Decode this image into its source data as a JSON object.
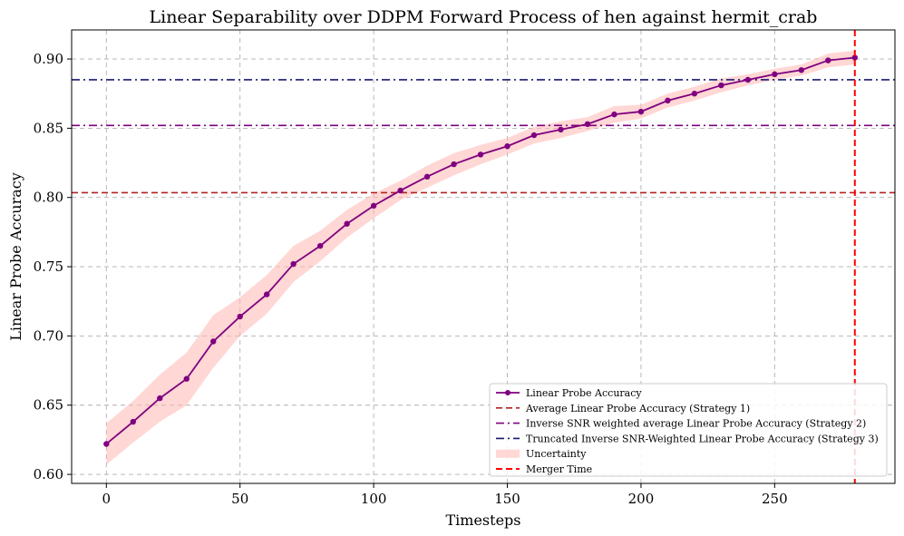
{
  "chart_data": {
    "type": "line",
    "title": "Linear Separability over DDPM Forward Process of hen against hermit_crab",
    "xlabel": "Timesteps",
    "ylabel": "Linear Probe Accuracy",
    "xlim": [
      -13,
      295
    ],
    "ylim": [
      0.5935,
      0.921
    ],
    "xticks": [
      0,
      50,
      100,
      150,
      200,
      250
    ],
    "yticks": [
      0.6,
      0.65,
      0.7,
      0.75,
      0.8,
      0.85,
      0.9
    ],
    "grid": true,
    "legend_position": "lower-right",
    "series": [
      {
        "name": "Linear Probe Accuracy",
        "color": "#800080",
        "x": [
          0,
          10,
          20,
          30,
          40,
          50,
          60,
          70,
          80,
          90,
          100,
          110,
          120,
          130,
          140,
          150,
          160,
          170,
          180,
          190,
          200,
          210,
          220,
          230,
          240,
          250,
          260,
          270,
          280
        ],
        "values": [
          0.622,
          0.638,
          0.655,
          0.669,
          0.696,
          0.714,
          0.73,
          0.752,
          0.765,
          0.781,
          0.794,
          0.805,
          0.815,
          0.824,
          0.831,
          0.837,
          0.845,
          0.849,
          0.853,
          0.86,
          0.862,
          0.87,
          0.875,
          0.881,
          0.885,
          0.889,
          0.892,
          0.899,
          0.901
        ]
      }
    ],
    "uncertainty": {
      "name": "Uncertainty",
      "color": "#ffb6b0",
      "half_width": [
        0.015,
        0.015,
        0.017,
        0.019,
        0.019,
        0.014,
        0.014,
        0.013,
        0.011,
        0.01,
        0.009,
        0.007,
        0.008,
        0.008,
        0.007,
        0.006,
        0.006,
        0.006,
        0.005,
        0.006,
        0.005,
        0.005,
        0.005,
        0.005,
        0.004,
        0.004,
        0.004,
        0.005,
        0.005
      ]
    },
    "hlines": [
      {
        "name": "Average Linear Probe Accuracy (Strategy 1)",
        "value": 0.8035,
        "color": "#b22222",
        "style": "dashed"
      },
      {
        "name": "Inverse SNR weighted average Linear Probe Accuracy (Strategy 2)",
        "value": 0.852,
        "color": "#800080",
        "style": "dashdot"
      },
      {
        "name": "Truncated Inverse SNR-Weighted Linear Probe Accuracy (Strategy 3)",
        "value": 0.885,
        "color": "#191970",
        "style": "dashdot"
      }
    ],
    "vlines": [
      {
        "name": "Merger Time",
        "value": 280,
        "color": "#ff0000",
        "style": "dashed"
      }
    ],
    "legend": [
      "Linear Probe Accuracy",
      "Average Linear Probe Accuracy (Strategy 1)",
      "Inverse SNR weighted average Linear Probe Accuracy (Strategy 2)",
      "Truncated Inverse SNR-Weighted Linear Probe Accuracy (Strategy 3)",
      "Uncertainty",
      "Merger Time"
    ]
  }
}
